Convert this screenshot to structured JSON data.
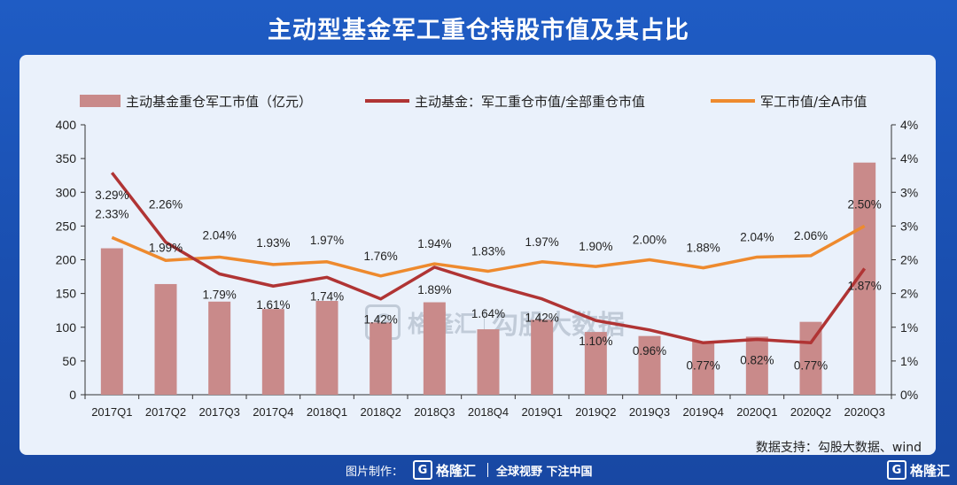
{
  "title": "主动型基金军工重仓持股市值及其占比",
  "source": "数据支持：勾股大数据、wind",
  "footer": {
    "made_by": "图片制作：",
    "brand": "格隆汇",
    "slogan": "全球视野 下注中国"
  },
  "watermark": {
    "brand": "格隆汇",
    "name": "勾股大数据"
  },
  "colors": {
    "bar": "#c98a8a",
    "line1": "#b03434",
    "line2": "#ee8a2e",
    "background": "#1f5cc4",
    "card": "#eaf1fb"
  },
  "chart_data": {
    "type": "bar",
    "title": "主动型基金军工重仓持股市值及其占比",
    "categories": [
      "2017Q1",
      "2017Q2",
      "2017Q3",
      "2017Q4",
      "2018Q1",
      "2018Q2",
      "2018Q3",
      "2018Q4",
      "2019Q1",
      "2019Q2",
      "2019Q3",
      "2019Q4",
      "2020Q1",
      "2020Q2",
      "2020Q3"
    ],
    "left_axis": {
      "min": 0,
      "max": 400,
      "ticks": [
        "0",
        "50",
        "100",
        "150",
        "200",
        "250",
        "300",
        "350",
        "400"
      ]
    },
    "right_axis": {
      "min": 0,
      "max": 4,
      "ticks": [
        "0%",
        "1%",
        "1%",
        "2%",
        "2%",
        "3%",
        "3%",
        "4%",
        "4%"
      ]
    },
    "legend_position": "top",
    "series": [
      {
        "name": "主动基金重仓军工市值（亿元）",
        "kind": "bar",
        "axis": "left",
        "values": [
          217,
          164,
          138,
          127,
          139,
          107,
          137,
          97,
          111,
          93,
          87,
          79,
          86,
          108,
          344
        ]
      },
      {
        "name": "主动基金：军工重仓市值/全部重仓市值",
        "kind": "line",
        "axis": "right",
        "values": [
          3.29,
          2.26,
          1.79,
          1.61,
          1.74,
          1.42,
          1.89,
          1.64,
          1.42,
          1.1,
          0.96,
          0.77,
          0.82,
          0.77,
          1.87
        ],
        "labels": [
          "3.29%",
          "2.26%",
          "1.79%",
          "1.61%",
          "1.74%",
          "1.42%",
          "1.89%",
          "1.64%",
          "1.42%",
          "1.10%",
          "0.96%",
          "0.77%",
          "0.82%",
          "0.77%",
          "1.87%"
        ]
      },
      {
        "name": "军工市值/全A市值",
        "kind": "line",
        "axis": "right",
        "values": [
          2.33,
          1.99,
          2.04,
          1.93,
          1.97,
          1.76,
          1.94,
          1.83,
          1.97,
          1.9,
          2.0,
          1.88,
          2.04,
          2.06,
          2.5
        ],
        "labels": [
          "2.33%",
          "1.99%",
          "2.04%",
          "1.93%",
          "1.97%",
          "1.76%",
          "1.94%",
          "1.83%",
          "1.97%",
          "1.90%",
          "2.00%",
          "1.88%",
          "2.04%",
          "2.06%",
          "2.50%"
        ]
      }
    ]
  }
}
